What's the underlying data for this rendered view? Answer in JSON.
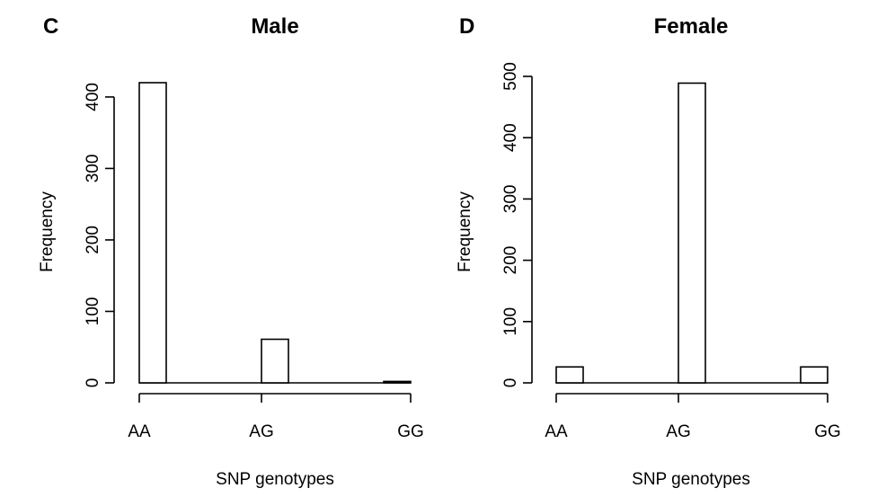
{
  "chart_data": [
    {
      "type": "bar",
      "panel_label": "C",
      "title": "Male",
      "xlabel": "SNP genotypes",
      "ylabel": "Frequency",
      "categories": [
        "AA",
        "AG",
        "GG"
      ],
      "values": [
        420,
        61,
        2
      ],
      "yticks": [
        0,
        100,
        200,
        300,
        400
      ],
      "ylim": [
        0,
        420
      ],
      "grid": false
    },
    {
      "type": "bar",
      "panel_label": "D",
      "title": "Female",
      "xlabel": "SNP genotypes",
      "ylabel": "Frequency",
      "categories": [
        "AA",
        "AG",
        "GG"
      ],
      "values": [
        26,
        489,
        26
      ],
      "yticks": [
        0,
        100,
        200,
        300,
        400,
        500
      ],
      "ylim": [
        0,
        500
      ],
      "grid": false
    }
  ]
}
